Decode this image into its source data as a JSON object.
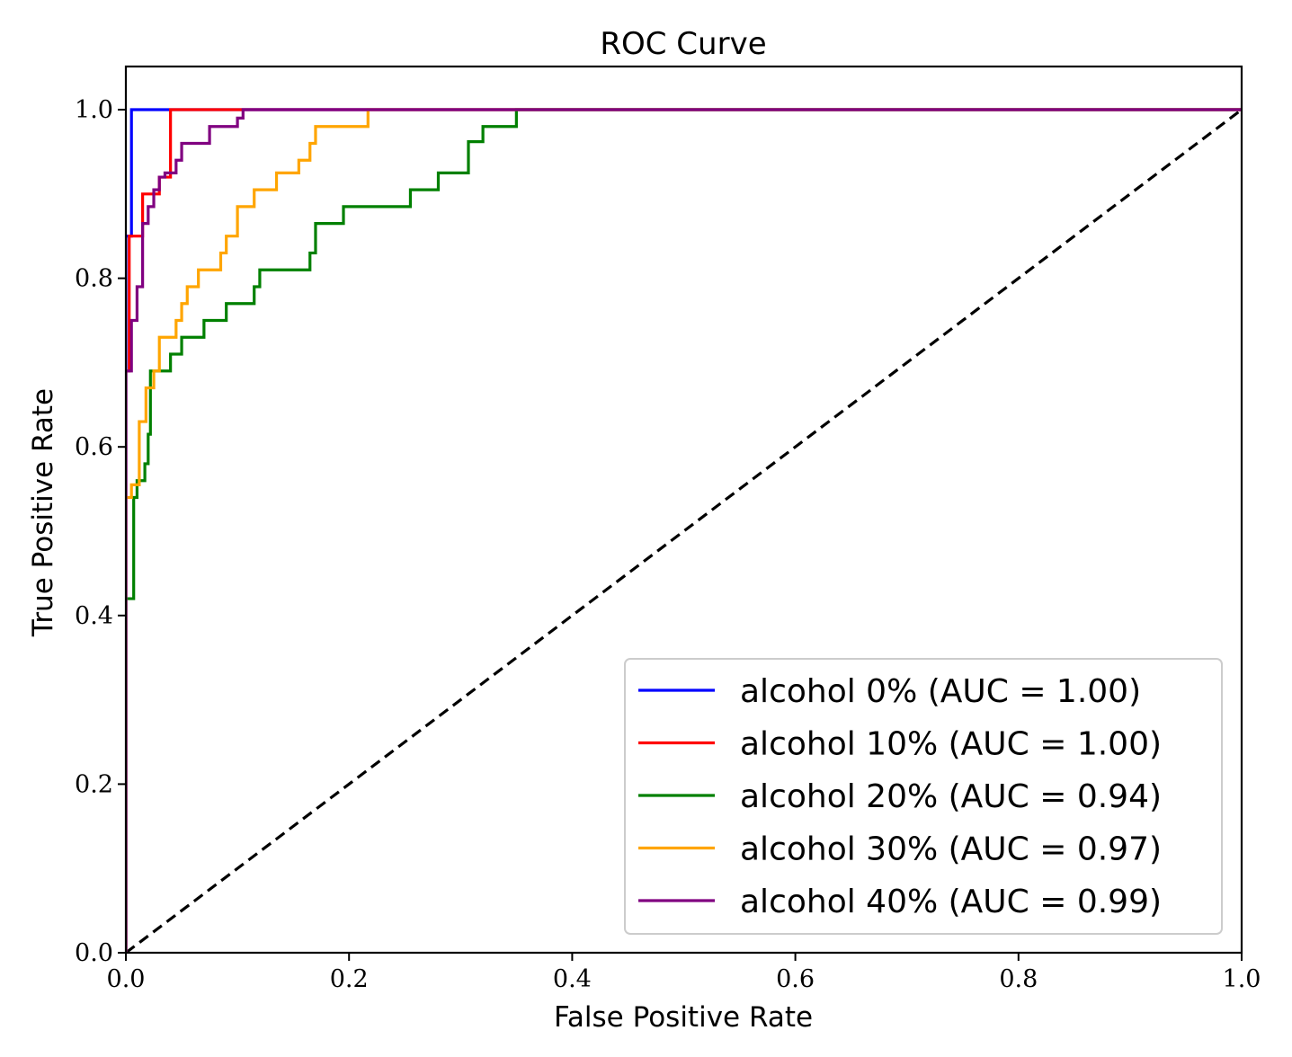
{
  "chart_data": {
    "type": "line",
    "title": "ROC Curve",
    "xlabel": "False Positive Rate",
    "ylabel": "True Positive Rate",
    "xlim": [
      0.0,
      1.0
    ],
    "ylim": [
      0.0,
      1.0
    ],
    "xticks": [
      "0.0",
      "0.2",
      "0.4",
      "0.6",
      "0.8",
      "1.0"
    ],
    "yticks": [
      "0.0",
      "0.2",
      "0.4",
      "0.6",
      "0.8",
      "1.0"
    ],
    "grid": false,
    "legend_position": "lower-right",
    "reference_line": {
      "style": "dashed",
      "color": "#000000",
      "x": [
        0.0,
        1.0
      ],
      "y": [
        0.0,
        1.0
      ]
    },
    "series": [
      {
        "name": "alcohol 0% (AUC = 1.00)",
        "color": "#0000ff",
        "width": 3.2,
        "x": [
          0.0,
          0.0,
          0.005,
          0.005,
          0.04,
          1.0
        ],
        "y": [
          0.0,
          0.85,
          0.85,
          1.0,
          1.0,
          1.0
        ]
      },
      {
        "name": "alcohol 10% (AUC = 1.00)",
        "color": "#ff0000",
        "width": 3.2,
        "x": [
          0.0,
          0.0,
          0.003,
          0.003,
          0.015,
          0.015,
          0.03,
          0.03,
          0.04,
          0.04,
          0.105,
          1.0
        ],
        "y": [
          0.0,
          0.69,
          0.69,
          0.85,
          0.85,
          0.9,
          0.9,
          0.92,
          0.92,
          1.0,
          1.0,
          1.0
        ]
      },
      {
        "name": "alcohol 20% (AUC = 0.94)",
        "color": "#008000",
        "width": 3.2,
        "x": [
          0.0,
          0.0,
          0.007,
          0.007,
          0.01,
          0.01,
          0.017,
          0.017,
          0.02,
          0.02,
          0.022,
          0.022,
          0.04,
          0.04,
          0.05,
          0.05,
          0.07,
          0.07,
          0.09,
          0.09,
          0.115,
          0.115,
          0.12,
          0.12,
          0.165,
          0.165,
          0.17,
          0.17,
          0.195,
          0.195,
          0.255,
          0.255,
          0.28,
          0.28,
          0.307,
          0.307,
          0.32,
          0.32,
          0.35,
          0.35,
          1.0
        ],
        "y": [
          0.0,
          0.42,
          0.42,
          0.54,
          0.54,
          0.56,
          0.56,
          0.58,
          0.58,
          0.615,
          0.615,
          0.69,
          0.69,
          0.71,
          0.71,
          0.73,
          0.73,
          0.75,
          0.75,
          0.77,
          0.77,
          0.79,
          0.79,
          0.81,
          0.81,
          0.83,
          0.83,
          0.865,
          0.865,
          0.885,
          0.885,
          0.905,
          0.905,
          0.925,
          0.925,
          0.962,
          0.962,
          0.98,
          0.98,
          1.0,
          1.0
        ]
      },
      {
        "name": "alcohol 30% (AUC = 0.97)",
        "color": "#ffa500",
        "width": 3.2,
        "x": [
          0.0,
          0.0,
          0.005,
          0.005,
          0.012,
          0.012,
          0.018,
          0.018,
          0.025,
          0.025,
          0.03,
          0.03,
          0.045,
          0.045,
          0.05,
          0.05,
          0.055,
          0.055,
          0.065,
          0.065,
          0.085,
          0.085,
          0.09,
          0.09,
          0.1,
          0.1,
          0.115,
          0.115,
          0.135,
          0.135,
          0.155,
          0.155,
          0.165,
          0.165,
          0.17,
          0.17,
          0.217,
          0.217,
          1.0
        ],
        "y": [
          0.0,
          0.54,
          0.54,
          0.555,
          0.555,
          0.63,
          0.63,
          0.67,
          0.67,
          0.69,
          0.69,
          0.73,
          0.73,
          0.75,
          0.75,
          0.77,
          0.77,
          0.79,
          0.79,
          0.81,
          0.81,
          0.83,
          0.83,
          0.85,
          0.85,
          0.885,
          0.885,
          0.905,
          0.905,
          0.925,
          0.925,
          0.94,
          0.94,
          0.96,
          0.96,
          0.98,
          0.98,
          1.0,
          1.0
        ]
      },
      {
        "name": "alcohol 40% (AUC = 0.99)",
        "color": "#800080",
        "width": 3.2,
        "x": [
          0.0,
          0.0,
          0.005,
          0.005,
          0.01,
          0.01,
          0.015,
          0.015,
          0.02,
          0.02,
          0.025,
          0.025,
          0.03,
          0.03,
          0.035,
          0.035,
          0.045,
          0.045,
          0.05,
          0.05,
          0.075,
          0.075,
          0.1,
          0.1,
          0.105,
          0.105,
          0.11,
          1.0
        ],
        "y": [
          0.0,
          0.69,
          0.69,
          0.75,
          0.75,
          0.79,
          0.79,
          0.865,
          0.865,
          0.885,
          0.885,
          0.905,
          0.905,
          0.92,
          0.92,
          0.925,
          0.925,
          0.94,
          0.94,
          0.96,
          0.96,
          0.98,
          0.98,
          0.99,
          0.99,
          1.0,
          1.0,
          1.0
        ]
      }
    ]
  }
}
